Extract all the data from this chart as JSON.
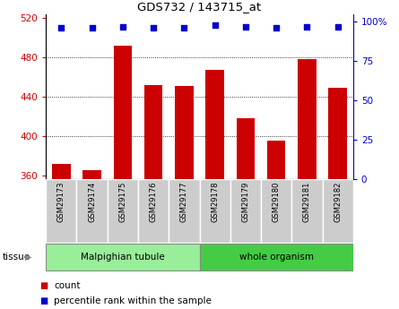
{
  "title": "GDS732 / 143715_at",
  "categories": [
    "GSM29173",
    "GSM29174",
    "GSM29175",
    "GSM29176",
    "GSM29177",
    "GSM29178",
    "GSM29179",
    "GSM29180",
    "GSM29181",
    "GSM29182"
  ],
  "counts": [
    372,
    365,
    492,
    452,
    451,
    467,
    418,
    395,
    478,
    449
  ],
  "percentile_ranks": [
    96,
    96,
    97,
    96,
    96,
    98,
    97,
    96,
    97,
    97
  ],
  "ylim_left": [
    356,
    524
  ],
  "ylim_right": [
    0,
    105
  ],
  "yticks_left": [
    360,
    400,
    440,
    480,
    520
  ],
  "yticks_right": [
    0,
    25,
    50,
    75,
    100
  ],
  "ytick_labels_right": [
    "0",
    "25",
    "50",
    "75",
    "100%"
  ],
  "bar_color": "#cc0000",
  "scatter_color": "#0000cc",
  "tissue_groups": [
    {
      "label": "Malpighian tubule",
      "start": 0,
      "end": 5,
      "color": "#99ee99"
    },
    {
      "label": "whole organism",
      "start": 5,
      "end": 10,
      "color": "#44cc44"
    }
  ],
  "tissue_label": "tissue",
  "legend_count_label": "count",
  "legend_percentile_label": "percentile rank within the sample",
  "bar_baseline": 356,
  "grid_yticks": [
    400,
    440,
    480
  ],
  "xlabel_bg": "#cccccc",
  "xlabel_border": "#ffffff"
}
